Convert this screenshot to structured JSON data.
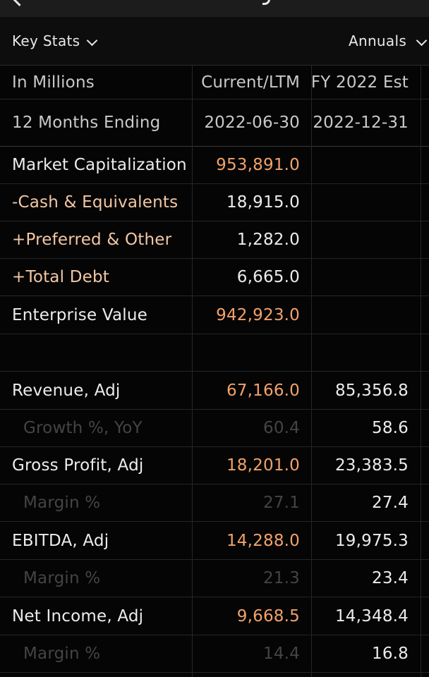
{
  "header": {
    "left_label": "Key Stats",
    "right_label": "Annuals"
  },
  "table": {
    "header_row": {
      "label": "In Millions",
      "current": "Current/LTM",
      "fy": "FY 2022 Est"
    },
    "period_row": {
      "label": "12 Months Ending",
      "current": "2022-06-30",
      "fy": "2022-12-31"
    },
    "rows": [
      {
        "label": "Market Capitalization",
        "current": "953,891.0",
        "fy": ""
      },
      {
        "label": "-Cash & Equivalents",
        "current": "18,915.0",
        "fy": ""
      },
      {
        "label": "+Preferred & Other",
        "current": "1,282.0",
        "fy": ""
      },
      {
        "label": "+Total Debt",
        "current": "6,665.0",
        "fy": ""
      },
      {
        "label": "Enterprise Value",
        "current": "942,923.0",
        "fy": ""
      },
      {
        "label": "",
        "current": "",
        "fy": ""
      },
      {
        "label": "Revenue, Adj",
        "current": "67,166.0",
        "fy": "85,356.8"
      },
      {
        "label": "Growth %, YoY",
        "current": "60.4",
        "fy": "58.6"
      },
      {
        "label": "Gross Profit, Adj",
        "current": "18,201.0",
        "fy": "23,383.5"
      },
      {
        "label": "Margin %",
        "current": "27.1",
        "fy": "27.4"
      },
      {
        "label": "EBITDA, Adj",
        "current": "14,288.0",
        "fy": "19,975.3"
      },
      {
        "label": "Margin %",
        "current": "21.3",
        "fy": "23.4"
      },
      {
        "label": "Net Income, Adj",
        "current": "9,668.5",
        "fy": "14,348.4"
      },
      {
        "label": "Margin %",
        "current": "14.4",
        "fy": "16.8"
      }
    ]
  },
  "colors": {
    "background": "#000000",
    "current_value": "#f2a26a",
    "adjustment_label": "#f3c7a3",
    "dim_text": "#444444",
    "text": "#ececec"
  }
}
